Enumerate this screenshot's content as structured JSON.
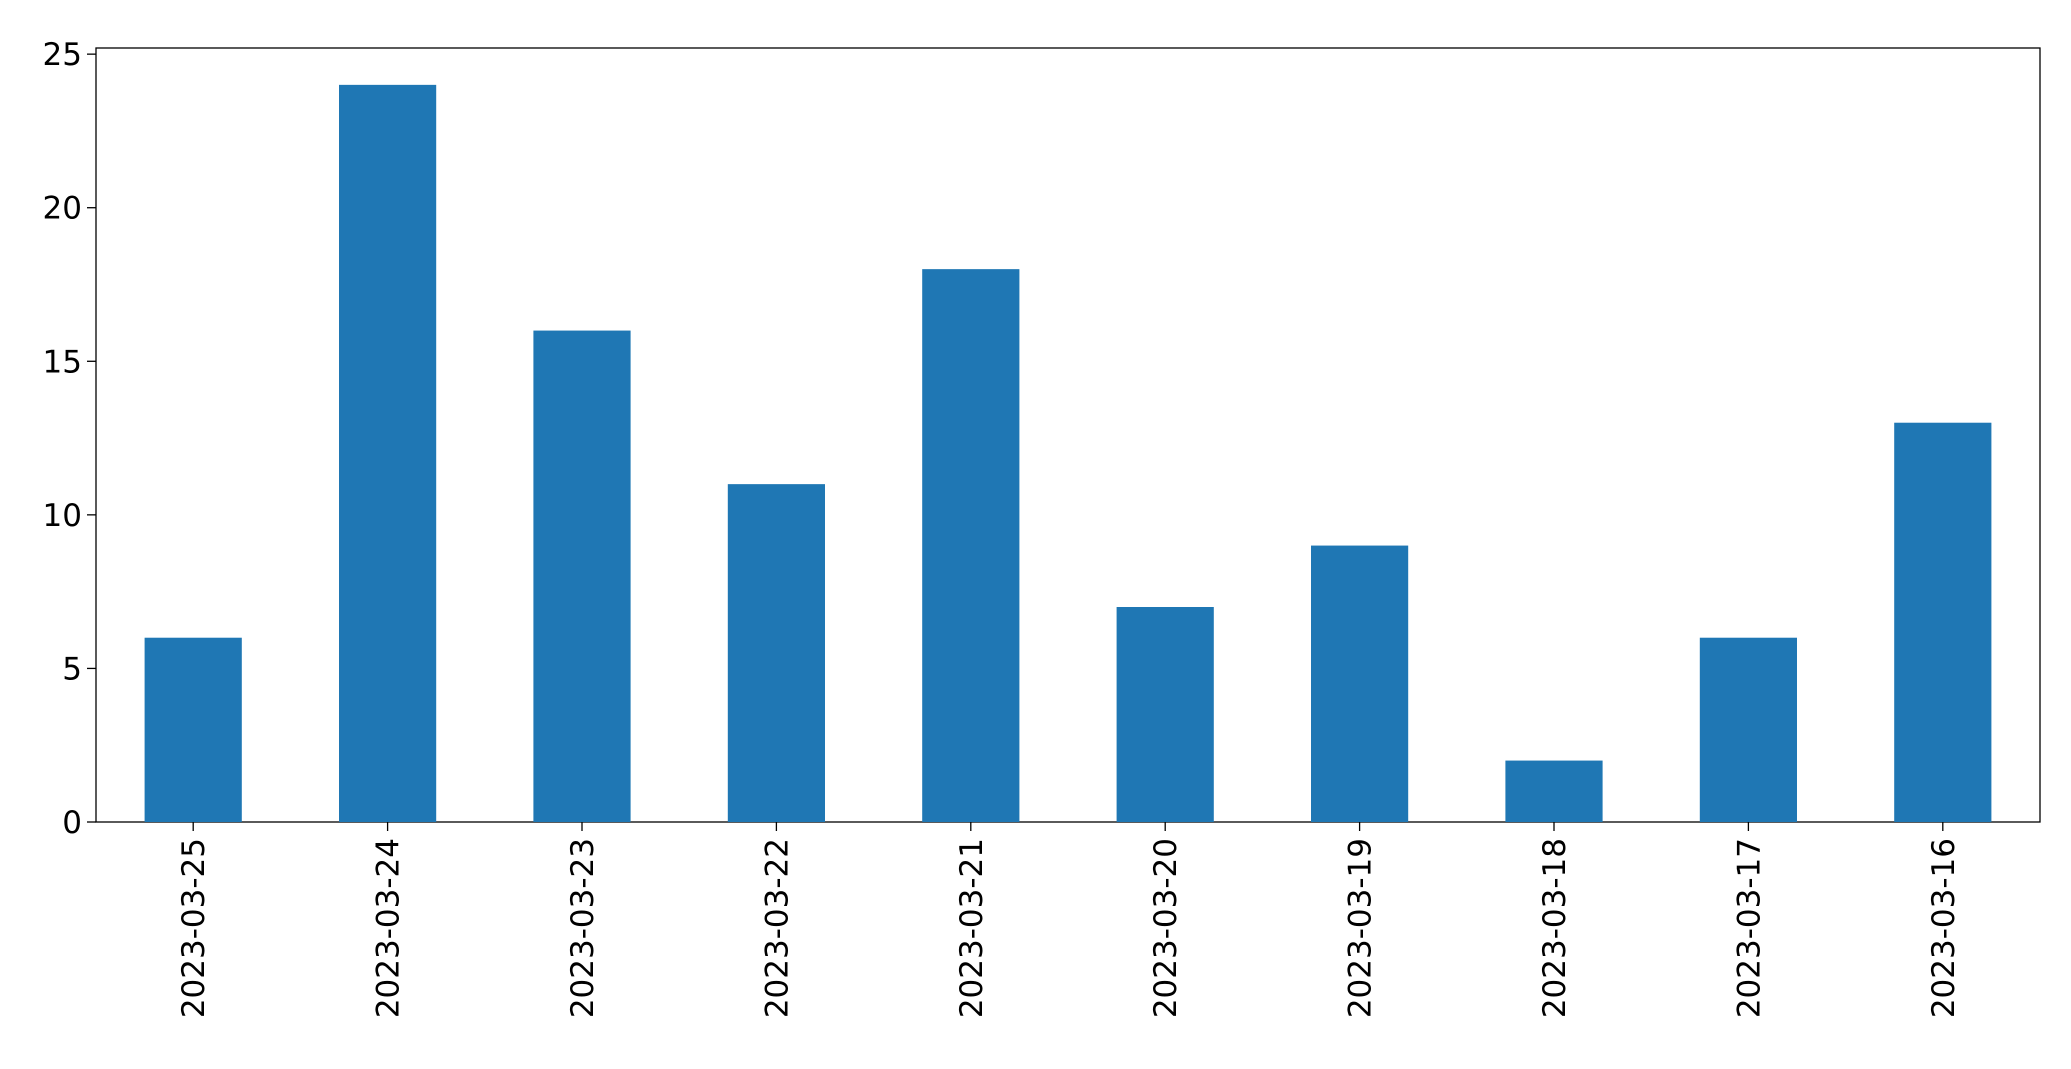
{
  "chart_data": {
    "type": "bar",
    "categories": [
      "2023-03-25",
      "2023-03-24",
      "2023-03-23",
      "2023-03-22",
      "2023-03-21",
      "2023-03-20",
      "2023-03-19",
      "2023-03-18",
      "2023-03-17",
      "2023-03-16"
    ],
    "values": [
      6,
      24,
      16,
      11,
      18,
      7,
      9,
      2,
      6,
      13
    ],
    "color": "#1f77b4",
    "ylim": [
      0,
      25.2
    ],
    "yticks": [
      0,
      5,
      10,
      15,
      20,
      25
    ],
    "grid": false
  }
}
